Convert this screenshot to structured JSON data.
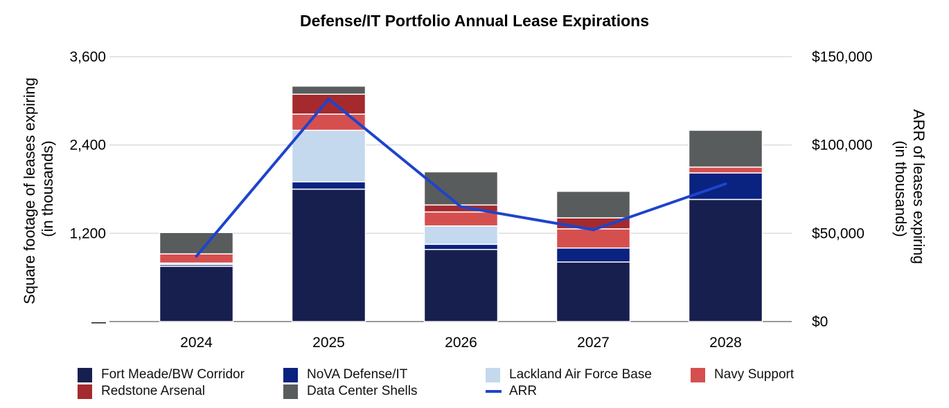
{
  "chart_data": {
    "type": "bar",
    "stacked": true,
    "title": "Defense/IT Portfolio Annual Lease Expirations",
    "categories": [
      "2024",
      "2025",
      "2026",
      "2027",
      "2028"
    ],
    "ylabel": [
      "Square footage of leases expiring",
      "(in thousands)"
    ],
    "y2label": [
      "ARR of leases expiring",
      "(in thousands)"
    ],
    "ylim": [
      0,
      3600
    ],
    "y2lim": [
      0,
      150000
    ],
    "yticks": [
      0,
      1200,
      2400,
      3600
    ],
    "ytick_labels": [
      "—",
      "1,200",
      "2,400",
      "3,600"
    ],
    "y2ticks": [
      0,
      50000,
      100000,
      150000
    ],
    "y2tick_labels": [
      "$0",
      "$50,000",
      "$100,000",
      "$150,000"
    ],
    "grid": true,
    "legend_position": "bottom",
    "series": [
      {
        "name": "Fort Meade/BW Corridor",
        "color": "#171f4f",
        "values": [
          750,
          1800,
          980,
          810,
          1660
        ]
      },
      {
        "name": "NoVA Defense/IT",
        "color": "#0a2280",
        "values": [
          25,
          100,
          70,
          190,
          360
        ]
      },
      {
        "name": "Lackland Air Force Base",
        "color": "#c4d8ee",
        "values": [
          20,
          700,
          250,
          0,
          0
        ]
      },
      {
        "name": "Navy Support",
        "color": "#d64f4f",
        "values": [
          125,
          220,
          190,
          260,
          80
        ]
      },
      {
        "name": "Redstone Arsenal",
        "color": "#a42a2e",
        "values": [
          0,
          270,
          95,
          150,
          0
        ]
      },
      {
        "name": "Data Center Shells",
        "color": "#595c5c",
        "values": [
          290,
          110,
          450,
          360,
          500
        ]
      }
    ],
    "line_series": {
      "name": "ARR",
      "axis": "right",
      "color": "#1d44cc",
      "values": [
        37000,
        126000,
        65000,
        52000,
        78000
      ]
    }
  }
}
